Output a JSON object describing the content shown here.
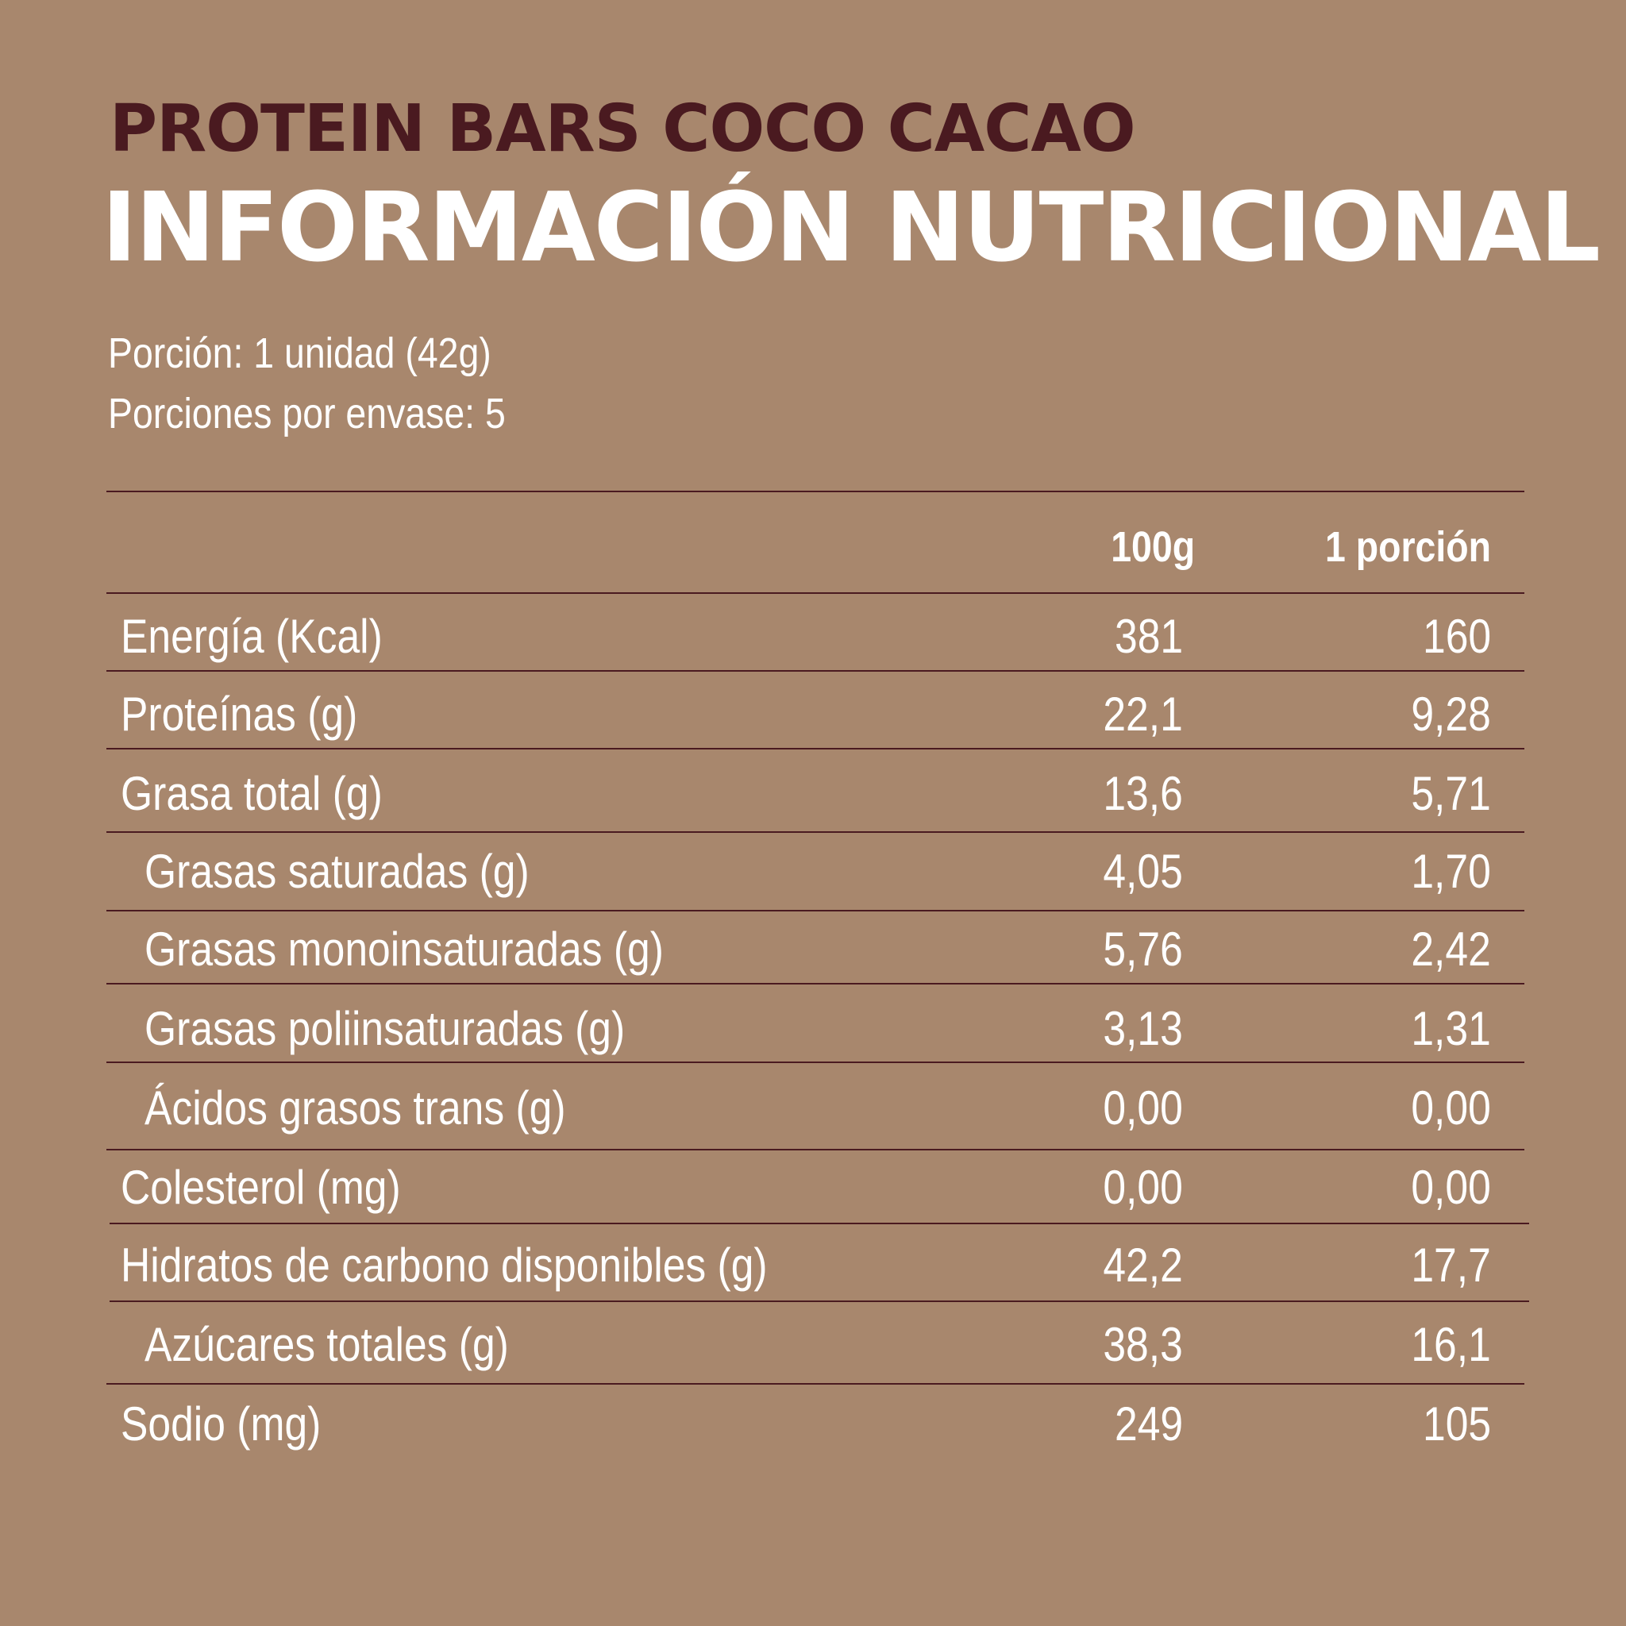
{
  "header": {
    "product_title": "PROTEIN BARS COCO CACAO",
    "main_title": "INFORMACIÓN NUTRICIONAL"
  },
  "serving": {
    "portion": "Porción: 1 unidad (42g)",
    "portions_per_package": "Porciones por envase: 5"
  },
  "table": {
    "columns": [
      "100g",
      "1 porción"
    ],
    "rows": [
      {
        "label": "Energía (Kcal)",
        "per_100g": "381",
        "per_portion": "160"
      },
      {
        "label": "Proteínas (g)",
        "per_100g": "22,1",
        "per_portion": "9,28"
      },
      {
        "label": "Grasa total (g)",
        "per_100g": "13,6",
        "per_portion": "5,71"
      },
      {
        "label": "Grasas saturadas (g)",
        "per_100g": "4,05",
        "per_portion": "1,70"
      },
      {
        "label": "Grasas monoinsaturadas (g)",
        "per_100g": "5,76",
        "per_portion": "2,42"
      },
      {
        "label": "Grasas poliinsaturadas (g)",
        "per_100g": "3,13",
        "per_portion": "1,31"
      },
      {
        "label": "Ácidos grasos trans (g)",
        "per_100g": "0,00",
        "per_portion": "0,00"
      },
      {
        "label": "Colesterol (mg)",
        "per_100g": "0,00",
        "per_portion": "0,00"
      },
      {
        "label": "Hidratos de carbono disponibles (g)",
        "per_100g": "42,2",
        "per_portion": "17,7"
      },
      {
        "label": "Azúcares totales (g)",
        "per_100g": "38,3",
        "per_portion": "16,1"
      },
      {
        "label": "Sodio (mg)",
        "per_100g": "249",
        "per_portion": "105"
      }
    ]
  },
  "colors": {
    "background": "#A8876D",
    "dark_brown": "#4A1A20",
    "text": "#FFFFFF"
  }
}
